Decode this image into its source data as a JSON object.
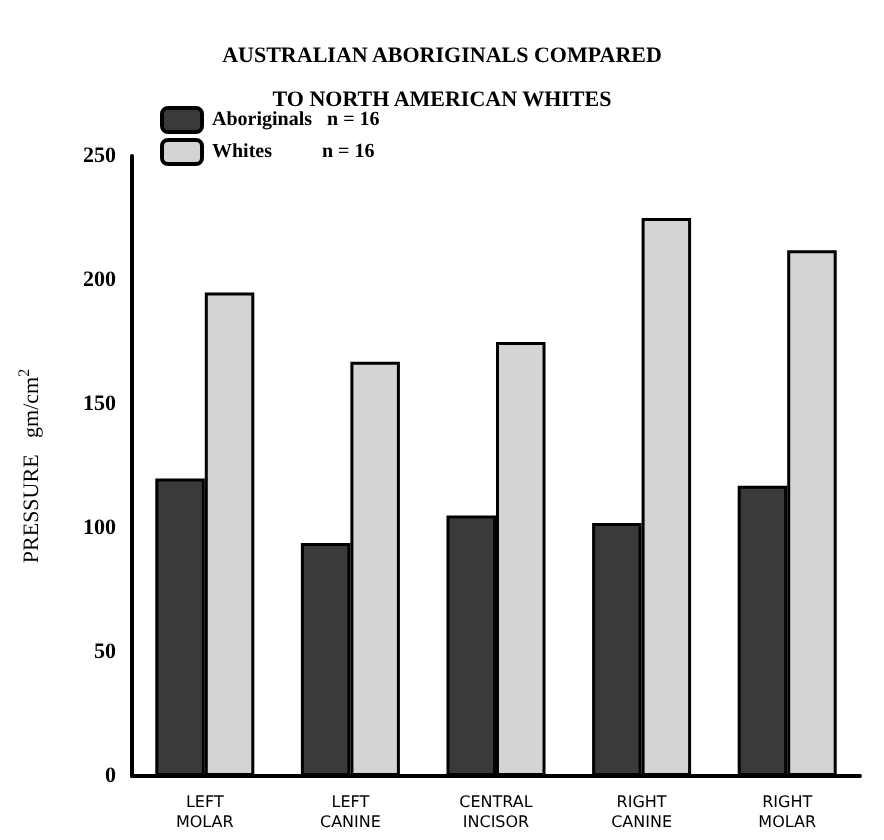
{
  "chart_data": {
    "type": "bar",
    "title": "AUSTRALIAN ABORIGINALS COMPARED\nTO NORTH AMERICAN WHITES",
    "ylabel": "PRESSURE   gm/cm$^{2}$",
    "categories": [
      "LEFT\nMOLAR",
      "LEFT\nCANINE",
      "CENTRAL\nINCISOR",
      "RIGHT\nCANINE",
      "RIGHT\nMOLAR"
    ],
    "series": [
      {
        "name": "Aboriginals   n = 16",
        "color": "#3a3a3a",
        "values": [
          120,
          94,
          105,
          102,
          117
        ]
      },
      {
        "name": "Whites          n = 16",
        "color": "#d4d4d4",
        "values": [
          195,
          167,
          175,
          225,
          212
        ]
      }
    ],
    "ylim": [
      0,
      250
    ],
    "yticks": [
      0,
      50,
      100,
      150,
      200,
      250
    ],
    "grid": false,
    "legend": "top left"
  }
}
